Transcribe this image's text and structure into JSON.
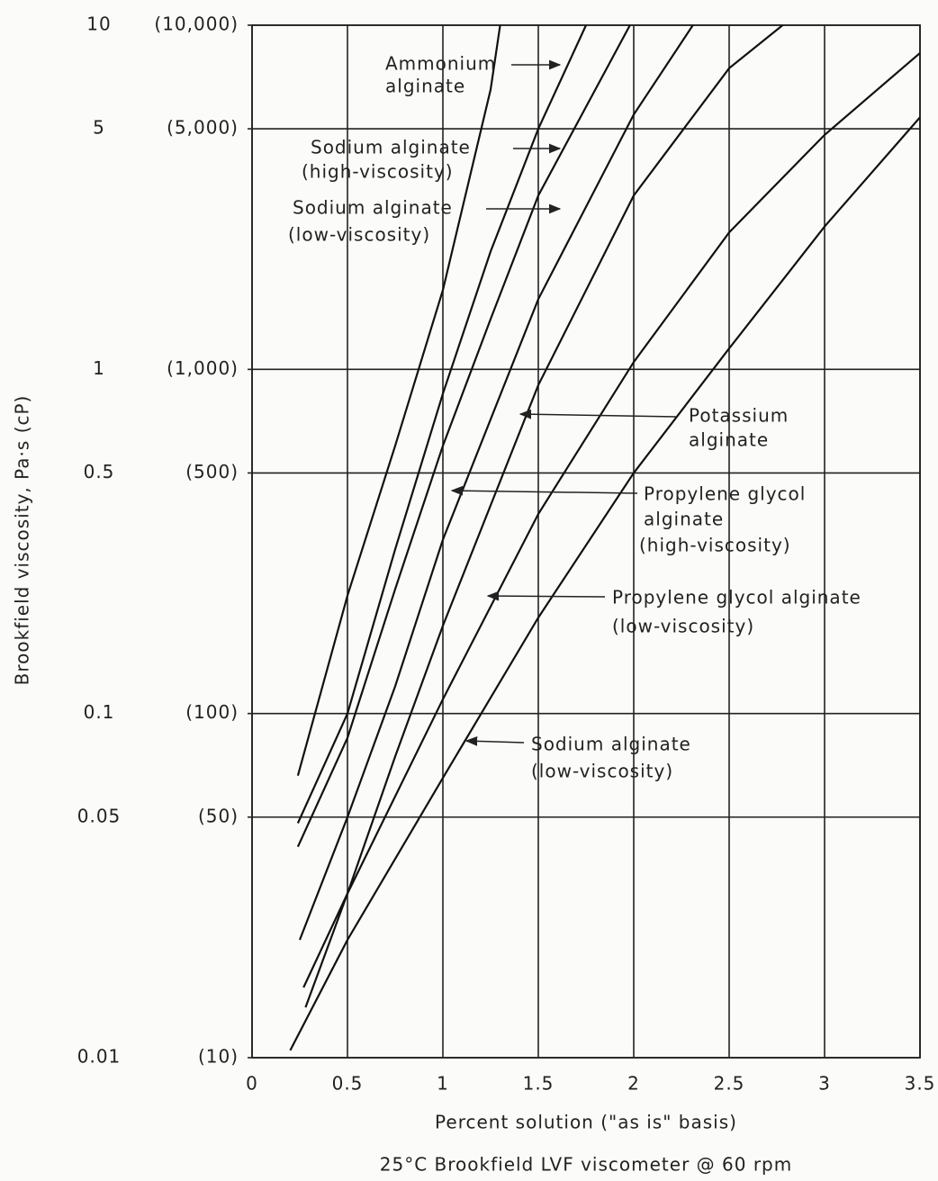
{
  "chart_data": {
    "type": "line",
    "x_label": "Percent solution (\"as is\" basis)",
    "y_label": "Brookfield viscosity, Pa·s (cP)",
    "subtitle": "25°C Brookfield LVF viscometer @ 60 rpm",
    "log_y": true,
    "grid": true,
    "color": "#111111",
    "xlim": [
      0,
      3.5
    ],
    "xticks": [
      0,
      0.5,
      1,
      1.5,
      2,
      2.5,
      3,
      3.5
    ],
    "ylim": [
      0.01,
      10
    ],
    "yticks": [
      0.01,
      0.05,
      0.1,
      0.5,
      1,
      5,
      10
    ],
    "y2lim": [
      10,
      10000
    ],
    "y2ticks": [
      {
        "value": 10,
        "label": "(10)"
      },
      {
        "value": 50,
        "label": "(50)"
      },
      {
        "value": 100,
        "label": "(100)"
      },
      {
        "value": 500,
        "label": "(500)"
      },
      {
        "value": 1000,
        "label": "(1,000)"
      },
      {
        "value": 5000,
        "label": "(5,000)"
      },
      {
        "value": 10000,
        "label": "(10,000)"
      }
    ],
    "series": [
      {
        "x": [
          0.24,
          0.5,
          0.75,
          1,
          1.25,
          1.3
        ],
        "values": [
          0.066,
          0.22,
          0.6,
          1.7,
          6.5,
          10
        ]
      },
      {
        "x": [
          0.24,
          0.5,
          0.75,
          1,
          1.25,
          1.5,
          1.75
        ],
        "values": [
          0.048,
          0.1,
          0.3,
          0.85,
          2.2,
          5,
          10
        ]
      },
      {
        "x": [
          0.24,
          0.5,
          0.75,
          1,
          1.25,
          1.5,
          1.98
        ],
        "values": [
          0.041,
          0.085,
          0.23,
          0.6,
          1.4,
          3.2,
          10
        ]
      },
      {
        "x": [
          0.25,
          0.5,
          0.75,
          1,
          1.5,
          2,
          2.31
        ],
        "values": [
          0.022,
          0.05,
          0.12,
          0.32,
          1.6,
          5.5,
          10
        ]
      },
      {
        "x": [
          0.28,
          0.5,
          0.75,
          1,
          1.5,
          2,
          2.5,
          2.78
        ],
        "values": [
          0.014,
          0.03,
          0.075,
          0.18,
          0.9,
          3.2,
          7.5,
          10
        ]
      },
      {
        "x": [
          0.27,
          0.5,
          1,
          1.5,
          2,
          2.5,
          3,
          3.5
        ],
        "values": [
          0.016,
          0.03,
          0.11,
          0.38,
          1.05,
          2.5,
          4.8,
          8.3
        ]
      },
      {
        "x": [
          0.2,
          0.5,
          1,
          1.5,
          2,
          2.5,
          3,
          3.5
        ],
        "values": [
          0.0105,
          0.022,
          0.065,
          0.19,
          0.5,
          1.15,
          2.6,
          5.4
        ]
      }
    ],
    "annotations": [
      {
        "lines": [
          "Ammonium",
          "alginate"
        ]
      },
      {
        "lines": [
          "Sodium alginate",
          "(high-viscosity)"
        ]
      },
      {
        "lines": [
          "Sodium alginate",
          "(low-viscosity)"
        ]
      },
      {
        "lines": [
          "Potassium",
          "alginate"
        ]
      },
      {
        "lines": [
          "Propylene glycol",
          "alginate",
          "(high-viscosity)"
        ]
      },
      {
        "lines": [
          "Propylene glycol alginate",
          "(low-viscosity)"
        ]
      },
      {
        "lines": [
          "Sodium alginate",
          "(low-viscosity)"
        ]
      }
    ]
  }
}
